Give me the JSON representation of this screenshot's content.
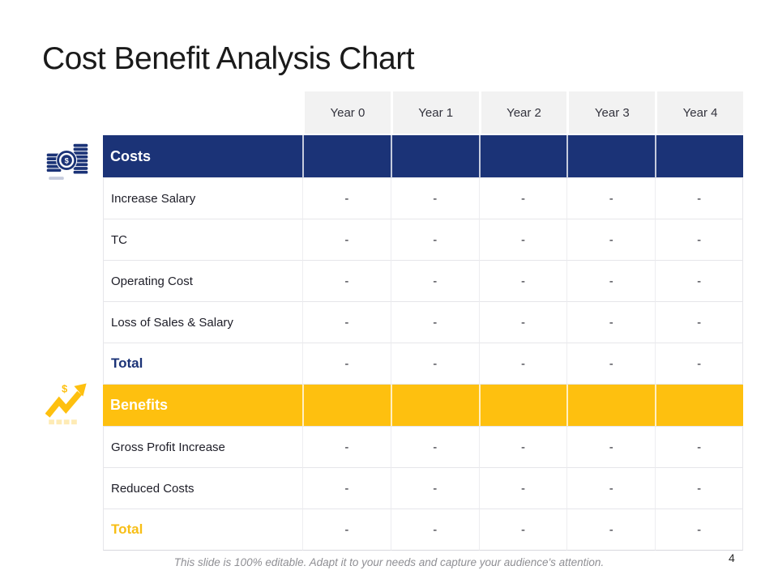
{
  "slide": {
    "title": "Cost Benefit Analysis Chart",
    "footer": "This slide is 100% editable. Adapt it to your needs and capture your audience's attention.",
    "page_number": "4"
  },
  "colors": {
    "navy": "#1B3377",
    "gold": "#FEC00F",
    "header_bg": "#F2F2F2",
    "border": "#E6E6EA",
    "footer_text": "#8F8F94"
  },
  "icons": {
    "costs": "coins-dollar-icon",
    "benefits": "growth-chart-dollar-icon"
  },
  "table": {
    "columns": [
      "",
      "Year 0",
      "Year 1",
      "Year 2",
      "Year 3",
      "Year 4"
    ],
    "rows": [
      {
        "type": "section-navy",
        "label": "Costs",
        "values": [
          "",
          "",
          "",
          "",
          ""
        ]
      },
      {
        "type": "data",
        "label": "Increase Salary",
        "values": [
          "-",
          "-",
          "-",
          "-",
          "-"
        ]
      },
      {
        "type": "data",
        "label": "TC",
        "values": [
          "-",
          "-",
          "-",
          "-",
          "-"
        ]
      },
      {
        "type": "data",
        "label": "Operating Cost",
        "values": [
          "-",
          "-",
          "-",
          "-",
          "-"
        ]
      },
      {
        "type": "data",
        "label": "Loss of Sales & Salary",
        "values": [
          "-",
          "-",
          "-",
          "-",
          "-"
        ]
      },
      {
        "type": "total-navy",
        "label": "Total",
        "values": [
          "-",
          "-",
          "-",
          "-",
          "-"
        ]
      },
      {
        "type": "section-gold",
        "label": "Benefits",
        "values": [
          "",
          "",
          "",
          "",
          ""
        ]
      },
      {
        "type": "data",
        "label": "Gross Profit Increase",
        "values": [
          "-",
          "-",
          "-",
          "-",
          "-"
        ]
      },
      {
        "type": "data",
        "label": "Reduced Costs",
        "values": [
          "-",
          "-",
          "-",
          "-",
          "-"
        ]
      },
      {
        "type": "total-gold",
        "label": "Total",
        "values": [
          "-",
          "-",
          "-",
          "-",
          "-"
        ]
      }
    ]
  }
}
